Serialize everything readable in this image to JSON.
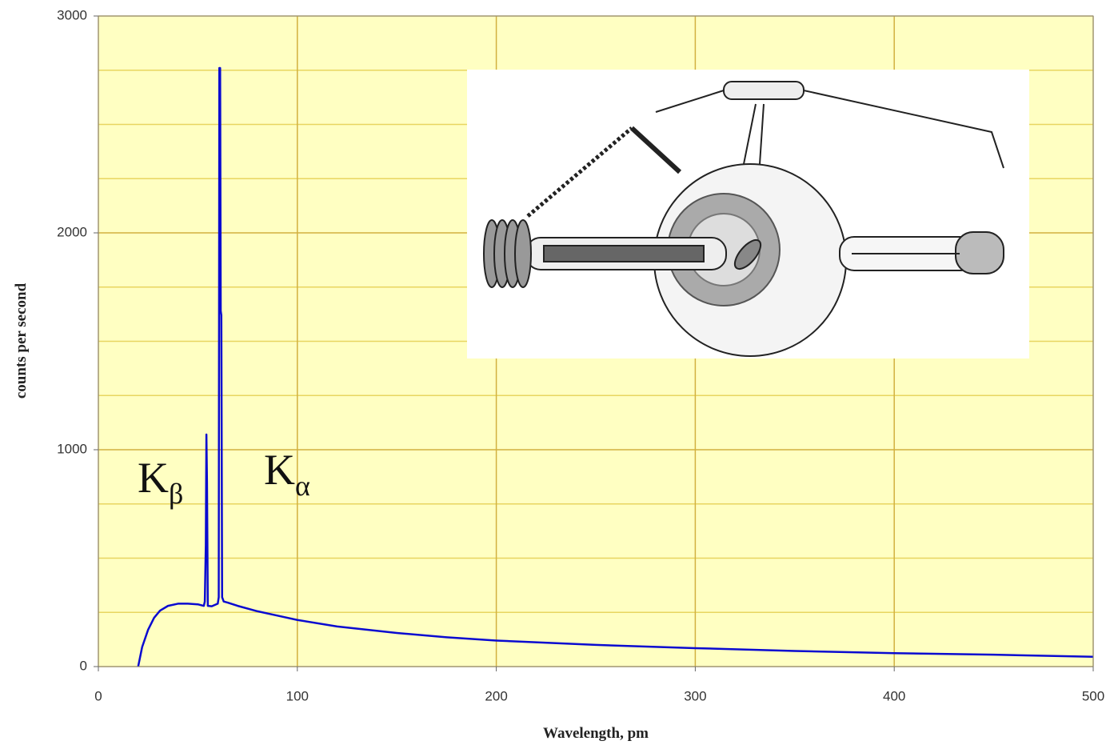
{
  "chart_data": {
    "type": "line",
    "x_label": "Wavelength, pm",
    "y_label": "counts per second",
    "x": [
      20,
      22,
      25,
      28,
      31,
      35,
      40,
      45,
      50,
      53,
      53.5,
      54,
      54.3,
      54.6,
      55,
      57,
      60,
      60.5,
      60.8,
      61.2,
      61.5,
      61.8,
      62.2,
      63,
      65,
      70,
      80,
      90,
      100,
      120,
      150,
      175,
      200,
      250,
      300,
      350,
      400,
      450,
      500
    ],
    "values": [
      0,
      90,
      170,
      225,
      258,
      280,
      290,
      290,
      287,
      280,
      300,
      560,
      1070,
      850,
      280,
      278,
      290,
      320,
      2760,
      2760,
      1640,
      1620,
      320,
      300,
      295,
      280,
      255,
      235,
      215,
      185,
      155,
      135,
      120,
      100,
      85,
      72,
      62,
      55,
      45
    ],
    "color": "#0a0ad0",
    "xlim": [
      0,
      500
    ],
    "xticks": [
      0,
      100,
      200,
      300,
      400,
      500
    ],
    "ylim": [
      0,
      3000
    ],
    "yticks": [
      0,
      1000,
      2000,
      3000
    ],
    "minor_yticks": [
      250,
      500,
      750,
      1250,
      1500,
      1750,
      2250,
      2500,
      2750
    ],
    "grid": true,
    "annotations": [
      {
        "text": "K",
        "subscript": "β"
      },
      {
        "text": "K",
        "subscript": "α"
      }
    ]
  }
}
